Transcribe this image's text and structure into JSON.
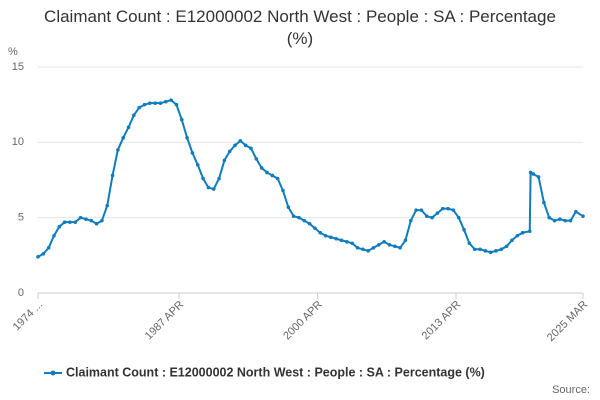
{
  "chart_data": {
    "type": "line",
    "title": "Claimant Count : E12000002 North West : People : SA : Percentage (%)",
    "y_label": "%",
    "source": "Source:",
    "legend": "bottom",
    "grid": true,
    "xlim": [
      1974,
      2025.17
    ],
    "xticks": [
      {
        "value": 1974,
        "label": "1974 ..."
      },
      {
        "value": 1987.25,
        "label": "1987 APR"
      },
      {
        "value": 2000.25,
        "label": "2000 APR"
      },
      {
        "value": 2013.25,
        "label": "2013 APR"
      },
      {
        "value": 2025.17,
        "label": "2025 MAR"
      }
    ],
    "ylim": [
      0,
      15
    ],
    "yticks": [
      0,
      5,
      10,
      15
    ],
    "x": [
      1974.0,
      1974.5,
      1975.0,
      1975.5,
      1976.0,
      1976.5,
      1977.0,
      1977.5,
      1978.0,
      1978.5,
      1979.0,
      1979.5,
      1980.0,
      1980.5,
      1981.0,
      1981.5,
      1982.0,
      1982.5,
      1983.0,
      1983.5,
      1984.0,
      1984.5,
      1985.0,
      1985.5,
      1986.0,
      1986.5,
      1987.0,
      1987.5,
      1988.0,
      1988.5,
      1989.0,
      1989.5,
      1990.0,
      1990.5,
      1991.0,
      1991.5,
      1992.0,
      1992.5,
      1993.0,
      1993.5,
      1994.0,
      1994.5,
      1995.0,
      1995.5,
      1996.0,
      1996.5,
      1997.0,
      1997.5,
      1998.0,
      1998.5,
      1999.0,
      1999.5,
      2000.0,
      2000.5,
      2001.0,
      2001.5,
      2002.0,
      2002.5,
      2003.0,
      2003.5,
      2004.0,
      2004.5,
      2005.0,
      2005.5,
      2006.0,
      2006.5,
      2007.0,
      2007.5,
      2008.0,
      2008.5,
      2009.0,
      2009.5,
      2010.0,
      2010.5,
      2011.0,
      2011.5,
      2012.0,
      2012.5,
      2013.0,
      2013.5,
      2014.0,
      2014.5,
      2015.0,
      2015.5,
      2016.0,
      2016.5,
      2017.0,
      2017.5,
      2018.0,
      2018.5,
      2019.0,
      2019.5,
      2020.17,
      2020.25,
      2020.5,
      2021.0,
      2021.5,
      2022.0,
      2022.5,
      2023.0,
      2023.5,
      2024.0,
      2024.5,
      2025.17
    ],
    "series": [
      {
        "name": "Claimant Count : E12000002 North West : People : SA : Percentage (%)",
        "color": "#0f7dbd",
        "values": [
          2.4,
          2.6,
          3.0,
          3.8,
          4.4,
          4.7,
          4.7,
          4.7,
          5.0,
          4.9,
          4.8,
          4.6,
          4.8,
          5.8,
          7.8,
          9.5,
          10.3,
          11.0,
          11.8,
          12.3,
          12.5,
          12.6,
          12.6,
          12.6,
          12.7,
          12.8,
          12.5,
          11.5,
          10.3,
          9.3,
          8.5,
          7.6,
          7.0,
          6.9,
          7.6,
          8.8,
          9.4,
          9.8,
          10.1,
          9.8,
          9.6,
          8.9,
          8.3,
          8.0,
          7.8,
          7.6,
          6.8,
          5.7,
          5.1,
          5.0,
          4.8,
          4.6,
          4.3,
          4.0,
          3.8,
          3.7,
          3.6,
          3.5,
          3.4,
          3.3,
          3.0,
          2.9,
          2.8,
          3.0,
          3.2,
          3.4,
          3.2,
          3.1,
          3.0,
          3.5,
          4.8,
          5.5,
          5.5,
          5.1,
          5.0,
          5.3,
          5.6,
          5.6,
          5.5,
          5.0,
          4.2,
          3.3,
          2.9,
          2.9,
          2.8,
          2.7,
          2.8,
          2.9,
          3.1,
          3.5,
          3.8,
          4.0,
          4.1,
          8.0,
          7.9,
          7.7,
          6.0,
          5.0,
          4.8,
          4.9,
          4.8,
          4.8,
          5.4,
          5.1
        ]
      }
    ]
  }
}
